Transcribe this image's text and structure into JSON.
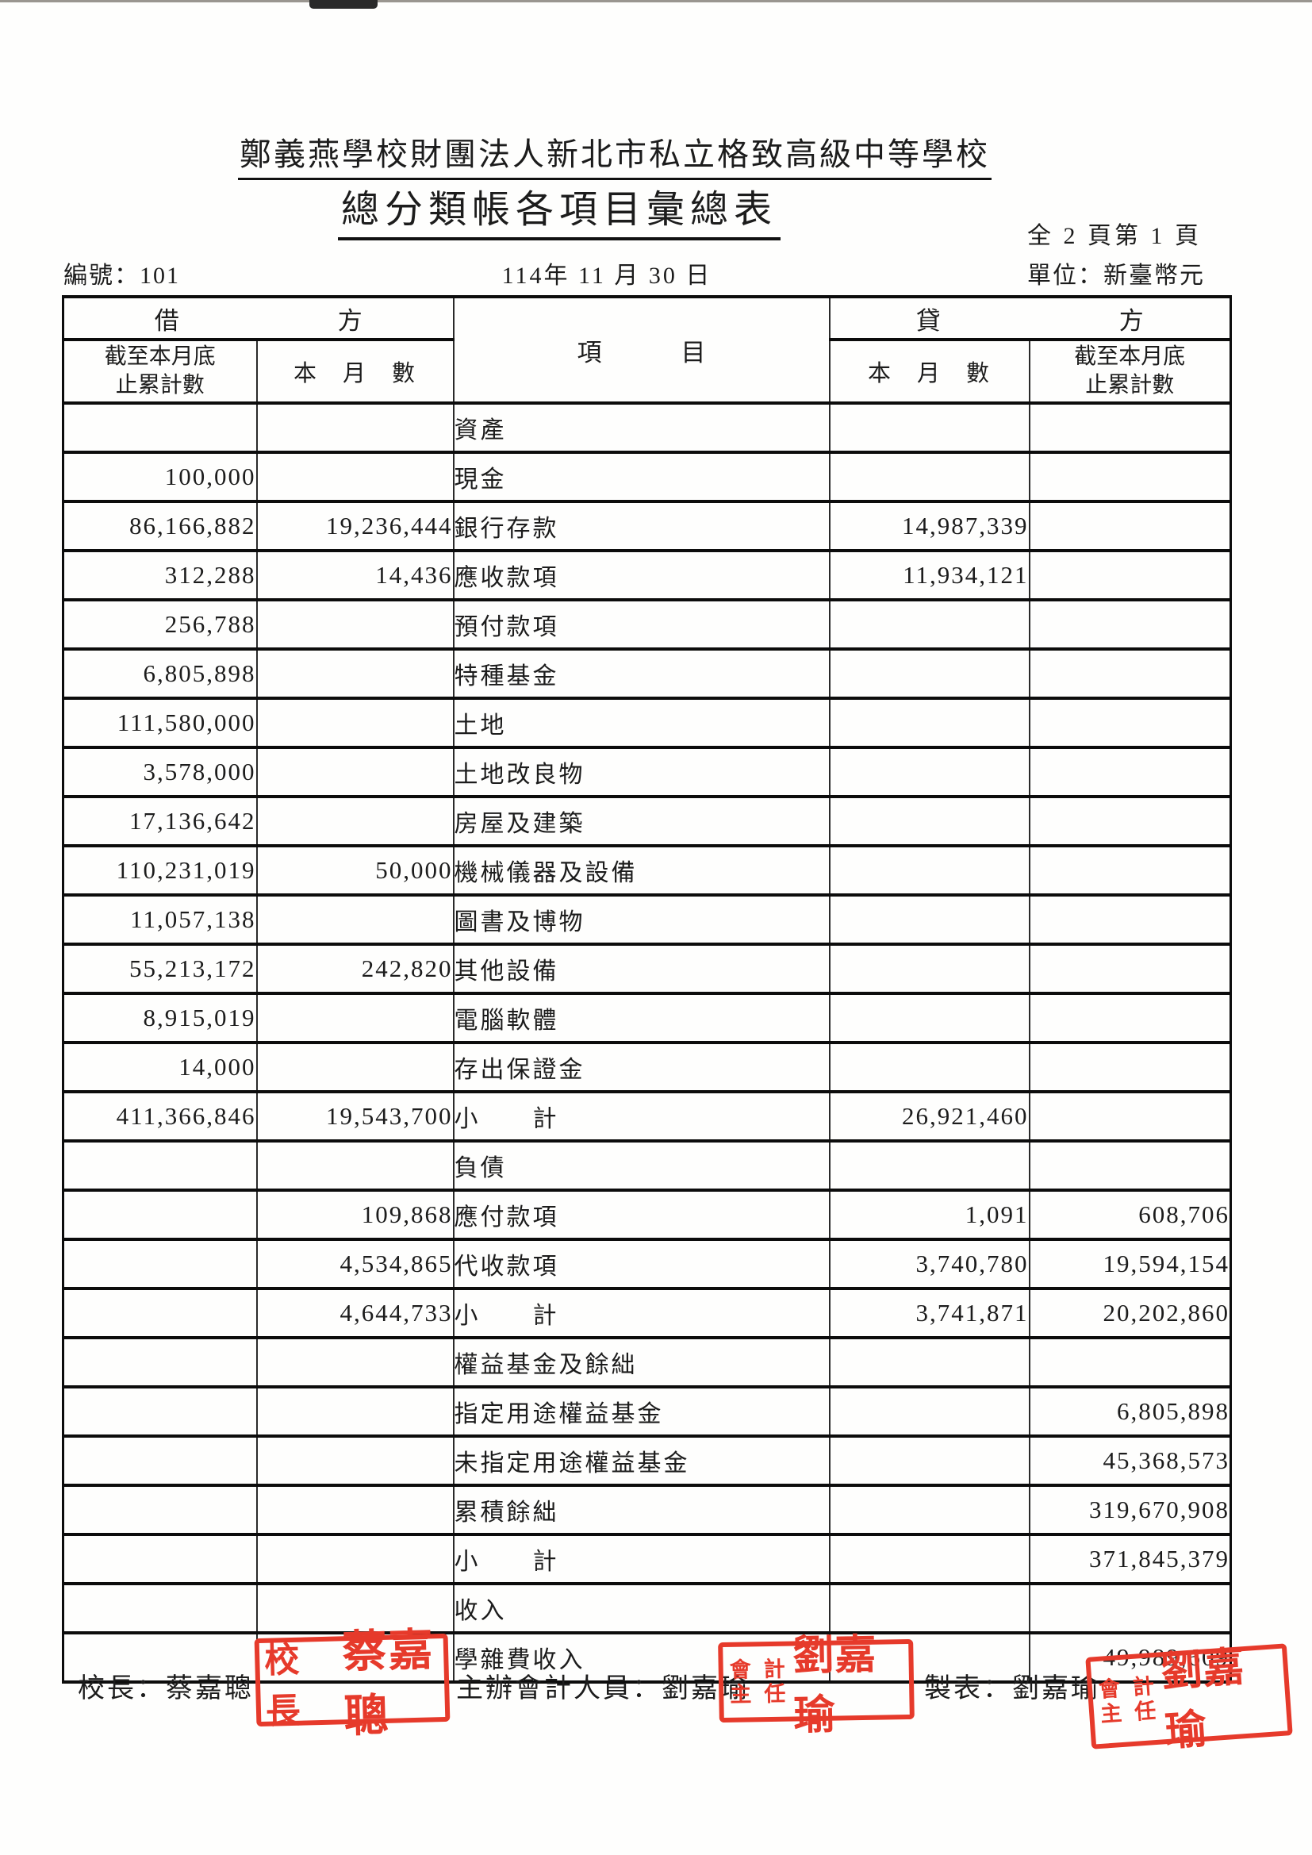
{
  "page": {
    "org_title": "鄭義燕學校財團法人新北市私立格致高級中等學校",
    "report_title": "總分類帳各項目彙總表",
    "page_info": "全 2 頁第 1 頁",
    "serial": "編號：101",
    "date": "114年 11 月 30 日",
    "unit": "單位：新臺幣元"
  },
  "table": {
    "header": {
      "debit": [
        "借",
        "方"
      ],
      "credit": [
        "貸",
        "方"
      ],
      "item": [
        "項",
        "目"
      ],
      "cum_line1": "截至本月底",
      "cum_line2": "止累計數",
      "month": "本　月　數"
    },
    "rows": [
      {
        "debit_cum": "",
        "debit_month": "",
        "item": "資產",
        "credit_month": "",
        "credit_cum": ""
      },
      {
        "debit_cum": "100,000",
        "debit_month": "",
        "item": "現金",
        "credit_month": "",
        "credit_cum": ""
      },
      {
        "debit_cum": "86,166,882",
        "debit_month": "19,236,444",
        "item": "銀行存款",
        "credit_month": "14,987,339",
        "credit_cum": ""
      },
      {
        "debit_cum": "312,288",
        "debit_month": "14,436",
        "item": "應收款項",
        "credit_month": "11,934,121",
        "credit_cum": ""
      },
      {
        "debit_cum": "256,788",
        "debit_month": "",
        "item": "預付款項",
        "credit_month": "",
        "credit_cum": ""
      },
      {
        "debit_cum": "6,805,898",
        "debit_month": "",
        "item": "特種基金",
        "credit_month": "",
        "credit_cum": ""
      },
      {
        "debit_cum": "111,580,000",
        "debit_month": "",
        "item": "土地",
        "credit_month": "",
        "credit_cum": ""
      },
      {
        "debit_cum": "3,578,000",
        "debit_month": "",
        "item": "土地改良物",
        "credit_month": "",
        "credit_cum": ""
      },
      {
        "debit_cum": "17,136,642",
        "debit_month": "",
        "item": "房屋及建築",
        "credit_month": "",
        "credit_cum": ""
      },
      {
        "debit_cum": "110,231,019",
        "debit_month": "50,000",
        "item": "機械儀器及設備",
        "credit_month": "",
        "credit_cum": ""
      },
      {
        "debit_cum": "11,057,138",
        "debit_month": "",
        "item": "圖書及博物",
        "credit_month": "",
        "credit_cum": ""
      },
      {
        "debit_cum": "55,213,172",
        "debit_month": "242,820",
        "item": "其他設備",
        "credit_month": "",
        "credit_cum": ""
      },
      {
        "debit_cum": "8,915,019",
        "debit_month": "",
        "item": "電腦軟體",
        "credit_month": "",
        "credit_cum": ""
      },
      {
        "debit_cum": "14,000",
        "debit_month": "",
        "item": "存出保證金",
        "credit_month": "",
        "credit_cum": ""
      },
      {
        "debit_cum": "411,366,846",
        "debit_month": "19,543,700",
        "item": "小　　計",
        "credit_month": "26,921,460",
        "credit_cum": ""
      },
      {
        "debit_cum": "",
        "debit_month": "",
        "item": "負債",
        "credit_month": "",
        "credit_cum": ""
      },
      {
        "debit_cum": "",
        "debit_month": "109,868",
        "item": "應付款項",
        "credit_month": "1,091",
        "credit_cum": "608,706"
      },
      {
        "debit_cum": "",
        "debit_month": "4,534,865",
        "item": "代收款項",
        "credit_month": "3,740,780",
        "credit_cum": "19,594,154"
      },
      {
        "debit_cum": "",
        "debit_month": "4,644,733",
        "item": "小　　計",
        "credit_month": "3,741,871",
        "credit_cum": "20,202,860"
      },
      {
        "debit_cum": "",
        "debit_month": "",
        "item": "權益基金及餘絀",
        "credit_month": "",
        "credit_cum": ""
      },
      {
        "debit_cum": "",
        "debit_month": "",
        "item": "指定用途權益基金",
        "credit_month": "",
        "credit_cum": "6,805,898"
      },
      {
        "debit_cum": "",
        "debit_month": "",
        "item": "未指定用途權益基金",
        "credit_month": "",
        "credit_cum": "45,368,573"
      },
      {
        "debit_cum": "",
        "debit_month": "",
        "item": "累積餘絀",
        "credit_month": "",
        "credit_cum": "319,670,908"
      },
      {
        "debit_cum": "",
        "debit_month": "",
        "item": "小　　計",
        "credit_month": "",
        "credit_cum": "371,845,379"
      },
      {
        "debit_cum": "",
        "debit_month": "",
        "item": "收入",
        "credit_month": "",
        "credit_cum": ""
      },
      {
        "debit_cum": "",
        "debit_month": "",
        "item": "學雜費收入",
        "credit_month": "",
        "credit_cum": "49,989,609"
      }
    ]
  },
  "signatures": {
    "principal": "校長：蔡嘉聰",
    "accountant": "主辦會計人員：劉嘉瑜",
    "preparer": "製表：劉嘉瑜"
  },
  "stamps": {
    "principal": {
      "prefix": "校長",
      "name": "蔡嘉聰"
    },
    "accounting": {
      "title_chars": [
        "會",
        "計",
        "主",
        "任"
      ],
      "name": "劉嘉瑜"
    }
  },
  "colors": {
    "stamp_red": "#e63a2b",
    "ink": "#1c1c1c"
  }
}
